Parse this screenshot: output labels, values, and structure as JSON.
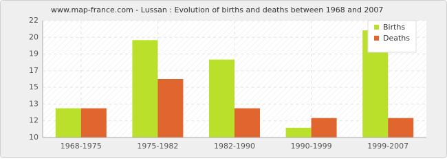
{
  "chart_data": {
    "type": "bar",
    "title": "www.map-france.com - Lussan : Evolution of births and deaths between 1968 and 2007",
    "categories": [
      "1968-1975",
      "1975-1982",
      "1982-1990",
      "1990-1999",
      "1999-2007"
    ],
    "series": [
      {
        "name": "Births",
        "color": "#bbe02b",
        "values": [
          13,
          20,
          18,
          11,
          21
        ]
      },
      {
        "name": "Deaths",
        "color": "#e0652f",
        "values": [
          13,
          16,
          13,
          12,
          12
        ]
      }
    ],
    "ylim": [
      10,
      22
    ],
    "yticks": [
      {
        "value": 10,
        "label": "10"
      },
      {
        "value": 11.714,
        "label": "12"
      },
      {
        "value": 13.429,
        "label": "13"
      },
      {
        "value": 15.143,
        "label": "15"
      },
      {
        "value": 16.857,
        "label": "17"
      },
      {
        "value": 18.571,
        "label": "19"
      },
      {
        "value": 20.286,
        "label": "20"
      },
      {
        "value": 22,
        "label": "22"
      }
    ],
    "grid": true,
    "legend": "upper right"
  }
}
